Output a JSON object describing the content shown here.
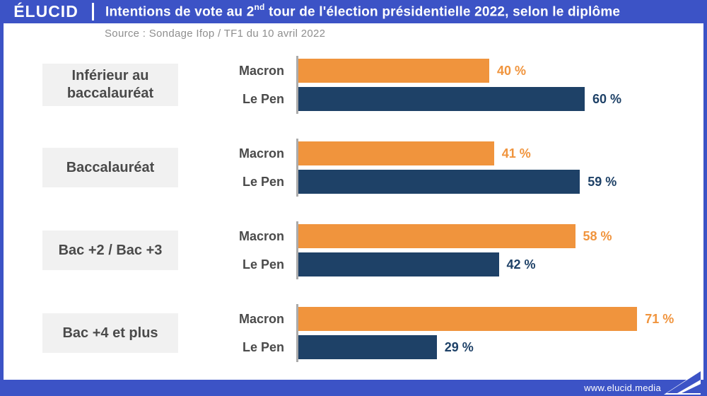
{
  "header": {
    "logo": "ÉLUCID",
    "title": {
      "before": "Intentions de vote au 2",
      "sup": "nd",
      "after": " tour de l'élection présidentielle 2022, selon le diplôme"
    }
  },
  "source": "Source : Sondage Ifop / TF1 du 10 avril 2022",
  "footer": {
    "url": "www.elucid.media"
  },
  "colors": {
    "brand_blue": "#3C53C6",
    "macron_orange": "#F0943D",
    "lepen_navy": "#1E4167",
    "category_box_bg": "#F1F1F1",
    "category_text": "#4A4A4A",
    "source_text": "#8F8F8F",
    "axis_line": "#ABABAB"
  },
  "chart_data": {
    "type": "bar",
    "orientation": "horizontal",
    "title": "Intentions de vote au 2nd tour de l'élection présidentielle 2022, selon le diplôme",
    "subtitle": "Source : Sondage Ifop / TF1 du 10 avril 2022",
    "categories": [
      "Inférieur au baccalauréat",
      "Baccalauréat",
      "Bac +2 / Bac +3",
      "Bac +4 et plus"
    ],
    "series": [
      {
        "name": "Macron",
        "color": "#F0943D",
        "values": [
          40,
          41,
          58,
          71
        ]
      },
      {
        "name": "Le Pen",
        "color": "#1E4167",
        "values": [
          60,
          59,
          42,
          29
        ]
      }
    ],
    "xlim": [
      0,
      100
    ],
    "unit": "%",
    "value_suffix": " %",
    "grid": false,
    "legend_position": "per-bar-labels"
  }
}
